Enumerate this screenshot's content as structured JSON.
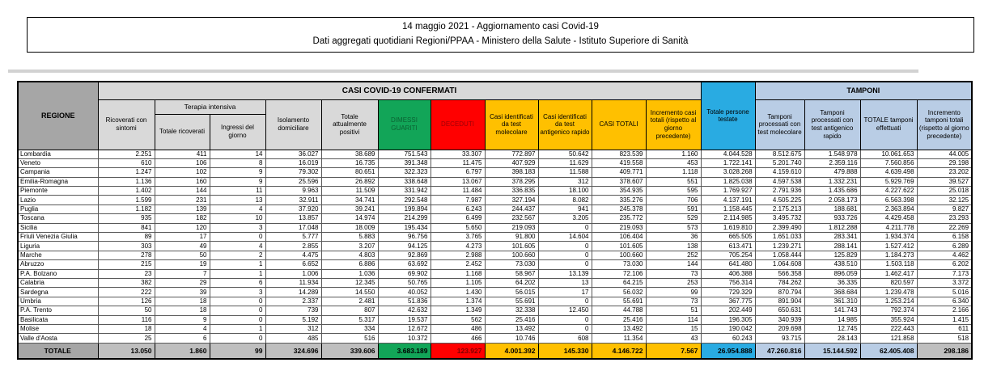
{
  "page": {
    "title_line1": "14 maggio 2021 - Aggiornamento casi Covid-19",
    "title_line2": "Dati aggregati quotidiani Regioni/PPAA - Ministero della Salute - Istituto Superiore di Sanità"
  },
  "table": {
    "region_header": "REGIONE",
    "confirmed_group_header": "CASI COVID-19 CONFERMATI",
    "tamponi_group_header": "TAMPONI",
    "terapia_intensiva_header": "Terapia intensiva",
    "col_headers": {
      "ricoverati": "Ricoverati con sintomi",
      "totale_ricoverati": "Totale ricoverati",
      "ingressi": "Ingressi del giorno",
      "isolamento": "Isolamento domiciliare",
      "attualmente_positivi": "Totale attualmente positivi",
      "dimessi_guariti": "DIMESSI GUARITI",
      "deceduti": "DECEDUTI",
      "casi_molecolare": "Casi identificati da test molecolare",
      "casi_antigenico": "Casi identificati da test antigenico rapido",
      "casi_totali": "CASI TOTALI",
      "incremento_casi": "Incremento casi totali (rispetto al giorno precedente)",
      "persone_testate": "Totale persone testate",
      "tamponi_molecolare": "Tamponi processati con test molecolare",
      "tamponi_antigenico": "Tamponi processati con test antigenico rapido",
      "totale_tamponi": "TOTALE tamponi effettuati",
      "incremento_tamponi": "Incremento tamponi totali (rispetto al giorno precedente)"
    },
    "rows": [
      {
        "region": "Lombardia",
        "values": [
          "2.251",
          "411",
          "14",
          "36.027",
          "38.689",
          "751.543",
          "33.307",
          "772.897",
          "50.642",
          "823.539",
          "1.160",
          "4.044.528",
          "8.512.675",
          "1.548.978",
          "10.061.653",
          "44.005"
        ]
      },
      {
        "region": "Veneto",
        "values": [
          "610",
          "106",
          "8",
          "16.019",
          "16.735",
          "391.348",
          "11.475",
          "407.929",
          "11.629",
          "419.558",
          "453",
          "1.722.141",
          "5.201.740",
          "2.359.116",
          "7.560.856",
          "29.198"
        ]
      },
      {
        "region": "Campania",
        "values": [
          "1.247",
          "102",
          "9",
          "79.302",
          "80.651",
          "322.323",
          "6.797",
          "398.183",
          "11.588",
          "409.771",
          "1.118",
          "3.028.268",
          "4.159.610",
          "479.888",
          "4.639.498",
          "23.202"
        ]
      },
      {
        "region": "Emilia-Romagna",
        "values": [
          "1.136",
          "160",
          "9",
          "25.596",
          "26.892",
          "338.648",
          "13.067",
          "378.295",
          "312",
          "378.607",
          "551",
          "1.825.038",
          "4.597.538",
          "1.332.231",
          "5.929.769",
          "39.527"
        ]
      },
      {
        "region": "Piemonte",
        "values": [
          "1.402",
          "144",
          "11",
          "9.963",
          "11.509",
          "331.942",
          "11.484",
          "336.835",
          "18.100",
          "354.935",
          "595",
          "1.769.927",
          "2.791.936",
          "1.435.686",
          "4.227.622",
          "25.018"
        ]
      },
      {
        "region": "Lazio",
        "values": [
          "1.599",
          "231",
          "13",
          "32.911",
          "34.741",
          "292.548",
          "7.987",
          "327.194",
          "8.082",
          "335.276",
          "706",
          "4.137.191",
          "4.505.225",
          "2.058.173",
          "6.563.398",
          "32.125"
        ]
      },
      {
        "region": "Puglia",
        "values": [
          "1.182",
          "139",
          "4",
          "37.920",
          "39.241",
          "199.894",
          "6.243",
          "244.437",
          "941",
          "245.378",
          "591",
          "1.158.445",
          "2.175.213",
          "188.681",
          "2.363.894",
          "9.827"
        ]
      },
      {
        "region": "Toscana",
        "values": [
          "935",
          "182",
          "10",
          "13.857",
          "14.974",
          "214.299",
          "6.499",
          "232.567",
          "3.205",
          "235.772",
          "529",
          "2.114.985",
          "3.495.732",
          "933.726",
          "4.429.458",
          "23.293"
        ]
      },
      {
        "region": "Sicilia",
        "values": [
          "841",
          "120",
          "3",
          "17.048",
          "18.009",
          "195.434",
          "5.650",
          "219.093",
          "0",
          "219.093",
          "573",
          "1.619.810",
          "2.399.490",
          "1.812.288",
          "4.211.778",
          "22.269"
        ]
      },
      {
        "region": "Friuli Venezia Giulia",
        "values": [
          "89",
          "17",
          "0",
          "5.777",
          "5.883",
          "96.756",
          "3.765",
          "91.800",
          "14.604",
          "106.404",
          "36",
          "665.505",
          "1.651.033",
          "283.341",
          "1.934.374",
          "6.158"
        ]
      },
      {
        "region": "Liguria",
        "values": [
          "303",
          "49",
          "4",
          "2.855",
          "3.207",
          "94.125",
          "4.273",
          "101.605",
          "0",
          "101.605",
          "138",
          "613.471",
          "1.239.271",
          "288.141",
          "1.527.412",
          "6.289"
        ]
      },
      {
        "region": "Marche",
        "values": [
          "278",
          "50",
          "2",
          "4.475",
          "4.803",
          "92.869",
          "2.988",
          "100.660",
          "0",
          "100.660",
          "252",
          "705.254",
          "1.058.444",
          "125.829",
          "1.184.273",
          "4.462"
        ]
      },
      {
        "region": "Abruzzo",
        "values": [
          "215",
          "19",
          "1",
          "6.652",
          "6.886",
          "63.692",
          "2.452",
          "73.030",
          "0",
          "73.030",
          "144",
          "641.480",
          "1.064.608",
          "438.510",
          "1.503.118",
          "6.202"
        ]
      },
      {
        "region": "P.A. Bolzano",
        "values": [
          "23",
          "7",
          "1",
          "1.006",
          "1.036",
          "69.902",
          "1.168",
          "58.967",
          "13.139",
          "72.106",
          "73",
          "406.388",
          "566.358",
          "896.059",
          "1.462.417",
          "7.173"
        ]
      },
      {
        "region": "Calabria",
        "values": [
          "382",
          "29",
          "6",
          "11.934",
          "12.345",
          "50.765",
          "1.105",
          "64.202",
          "13",
          "64.215",
          "253",
          "756.314",
          "784.262",
          "36.335",
          "820.597",
          "3.372"
        ]
      },
      {
        "region": "Sardegna",
        "values": [
          "222",
          "39",
          "3",
          "14.289",
          "14.550",
          "40.052",
          "1.430",
          "56.015",
          "17",
          "56.032",
          "99",
          "729.329",
          "870.794",
          "368.684",
          "1.239.478",
          "5.016"
        ]
      },
      {
        "region": "Umbria",
        "values": [
          "126",
          "18",
          "0",
          "2.337",
          "2.481",
          "51.836",
          "1.374",
          "55.691",
          "0",
          "55.691",
          "73",
          "367.775",
          "891.904",
          "361.310",
          "1.253.214",
          "6.340"
        ]
      },
      {
        "region": "P.A. Trento",
        "values": [
          "50",
          "18",
          "0",
          "739",
          "807",
          "42.632",
          "1.349",
          "32.338",
          "12.450",
          "44.788",
          "51",
          "202.449",
          "650.631",
          "141.743",
          "792.374",
          "2.166"
        ]
      },
      {
        "region": "Basilicata",
        "values": [
          "116",
          "9",
          "0",
          "5.192",
          "5.317",
          "19.537",
          "562",
          "25.416",
          "0",
          "25.416",
          "114",
          "196.305",
          "340.939",
          "14.985",
          "355.924",
          "1.415"
        ]
      },
      {
        "region": "Molise",
        "values": [
          "18",
          "4",
          "1",
          "312",
          "334",
          "12.672",
          "486",
          "13.492",
          "0",
          "13.492",
          "15",
          "190.042",
          "209.698",
          "12.745",
          "222.443",
          "611"
        ]
      },
      {
        "region": "Valle d'Aosta",
        "values": [
          "25",
          "6",
          "0",
          "485",
          "516",
          "10.372",
          "466",
          "10.746",
          "608",
          "11.354",
          "43",
          "60.243",
          "93.715",
          "28.143",
          "121.858",
          "518"
        ]
      }
    ],
    "total_row": {
      "label": "TOTALE",
      "values": [
        "13.050",
        "1.860",
        "99",
        "324.696",
        "339.606",
        "3.683.189",
        "123.927",
        "4.001.392",
        "145.330",
        "4.146.722",
        "7.567",
        "26.954.888",
        "47.260.816",
        "15.144.592",
        "62.405.408",
        "298.186"
      ]
    },
    "colors": {
      "green": "#12a558",
      "red": "#ff0000",
      "yellow": "#ffc000",
      "blue": "#29abe2",
      "periwinkle": "#b9cde5",
      "header_gray": "#a6a6a6",
      "band_gray": "#d9d9d9",
      "total_gray": "#bfbfbf"
    }
  }
}
